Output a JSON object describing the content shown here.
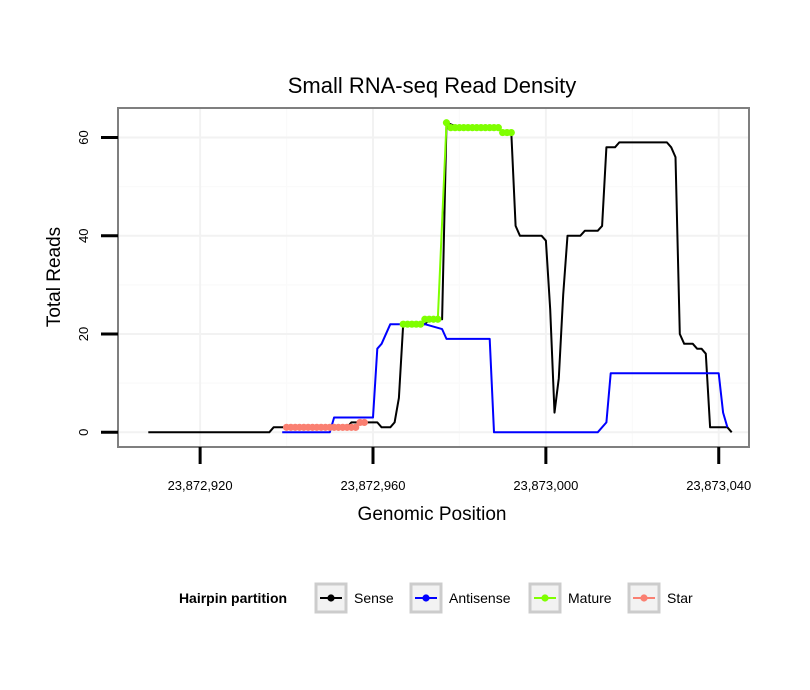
{
  "chart_data": {
    "type": "line",
    "title": "Small RNA-seq Read Density",
    "xlabel": "Genomic Position",
    "ylabel": "Total Reads",
    "xlim": [
      23872901,
      23873047
    ],
    "ylim": [
      -3,
      66
    ],
    "grid": true,
    "x_ticks": [
      {
        "value": 23872920,
        "label": "23,872,920"
      },
      {
        "value": 23872960,
        "label": "23,872,960"
      },
      {
        "value": 23873000,
        "label": "23,873,000"
      },
      {
        "value": 23873040,
        "label": "23,873,040"
      }
    ],
    "y_ticks": [
      {
        "value": 0,
        "label": "0"
      },
      {
        "value": 20,
        "label": "20"
      },
      {
        "value": 40,
        "label": "40"
      },
      {
        "value": 60,
        "label": "60"
      }
    ],
    "legend": {
      "title": "Hairpin partition",
      "placement": "bottom",
      "entries": [
        {
          "name": "Sense",
          "color": "#000000"
        },
        {
          "name": "Antisense",
          "color": "#0000ff"
        },
        {
          "name": "Mature",
          "color": "#7fff00"
        },
        {
          "name": "Star",
          "color": "#fa8072"
        }
      ]
    },
    "series": [
      {
        "name": "Sense",
        "color": "#000000",
        "points": [
          [
            23872908,
            0
          ],
          [
            23872936,
            0
          ],
          [
            23872937,
            1
          ],
          [
            23872954,
            1
          ],
          [
            23872955,
            2
          ],
          [
            23872961,
            2
          ],
          [
            23872962,
            1
          ],
          [
            23872964,
            1
          ],
          [
            23872965,
            2
          ],
          [
            23872966,
            7
          ],
          [
            23872967,
            22
          ],
          [
            23872972,
            22
          ],
          [
            23872973,
            23
          ],
          [
            23872976,
            23
          ],
          [
            23872977,
            63
          ],
          [
            23872980,
            62
          ],
          [
            23872989,
            62
          ],
          [
            23872990,
            61
          ],
          [
            23872992,
            61
          ],
          [
            23872993,
            42
          ],
          [
            23872994,
            40
          ],
          [
            23872999,
            40
          ],
          [
            23873000,
            39
          ],
          [
            23873001,
            25
          ],
          [
            23873002,
            4
          ],
          [
            23873003,
            11
          ],
          [
            23873004,
            28
          ],
          [
            23873005,
            40
          ],
          [
            23873008,
            40
          ],
          [
            23873009,
            41
          ],
          [
            23873012,
            41
          ],
          [
            23873013,
            42
          ],
          [
            23873014,
            58
          ],
          [
            23873016,
            58
          ],
          [
            23873017,
            59
          ],
          [
            23873028,
            59
          ],
          [
            23873029,
            58
          ],
          [
            23873030,
            56
          ],
          [
            23873031,
            20
          ],
          [
            23873032,
            18
          ],
          [
            23873034,
            18
          ],
          [
            23873035,
            17
          ],
          [
            23873036,
            17
          ],
          [
            23873037,
            16
          ],
          [
            23873038,
            1
          ],
          [
            23873042,
            1
          ],
          [
            23873043,
            0
          ]
        ]
      },
      {
        "name": "Antisense",
        "color": "#0000ff",
        "points": [
          [
            23872939,
            0
          ],
          [
            23872950,
            0
          ],
          [
            23872951,
            3
          ],
          [
            23872960,
            3
          ],
          [
            23872961,
            17
          ],
          [
            23872962,
            18
          ],
          [
            23872964,
            22
          ],
          [
            23872969,
            22
          ],
          [
            23872972,
            22
          ],
          [
            23872976,
            21
          ],
          [
            23872977,
            19
          ],
          [
            23872987,
            19
          ],
          [
            23872988,
            0
          ],
          [
            23873012,
            0
          ],
          [
            23873014,
            2
          ],
          [
            23873015,
            12
          ],
          [
            23873039,
            12
          ],
          [
            23873040,
            12
          ],
          [
            23873041,
            4
          ],
          [
            23873042,
            1
          ]
        ]
      },
      {
        "name": "Mature",
        "color": "#7fff00",
        "points": [
          [
            23872967,
            22
          ],
          [
            23872968,
            22
          ],
          [
            23872969,
            22
          ],
          [
            23872970,
            22
          ],
          [
            23872971,
            22
          ],
          [
            23872972,
            23
          ],
          [
            23872973,
            23
          ],
          [
            23872974,
            23
          ],
          [
            23872975,
            23
          ],
          [
            23872977,
            63
          ],
          [
            23872978,
            62
          ],
          [
            23872979,
            62
          ],
          [
            23872980,
            62
          ],
          [
            23872981,
            62
          ],
          [
            23872982,
            62
          ],
          [
            23872983,
            62
          ],
          [
            23872984,
            62
          ],
          [
            23872985,
            62
          ],
          [
            23872986,
            62
          ],
          [
            23872987,
            62
          ],
          [
            23872988,
            62
          ],
          [
            23872989,
            62
          ],
          [
            23872990,
            61
          ],
          [
            23872991,
            61
          ],
          [
            23872992,
            61
          ]
        ]
      },
      {
        "name": "Star",
        "color": "#fa8072",
        "points": [
          [
            23872940,
            1
          ],
          [
            23872941,
            1
          ],
          [
            23872942,
            1
          ],
          [
            23872943,
            1
          ],
          [
            23872944,
            1
          ],
          [
            23872945,
            1
          ],
          [
            23872946,
            1
          ],
          [
            23872947,
            1
          ],
          [
            23872948,
            1
          ],
          [
            23872949,
            1
          ],
          [
            23872950,
            1
          ],
          [
            23872951,
            1
          ],
          [
            23872952,
            1
          ],
          [
            23872953,
            1
          ],
          [
            23872954,
            1
          ],
          [
            23872955,
            1
          ],
          [
            23872956,
            1
          ],
          [
            23872957,
            2
          ],
          [
            23872958,
            2
          ]
        ]
      }
    ]
  }
}
